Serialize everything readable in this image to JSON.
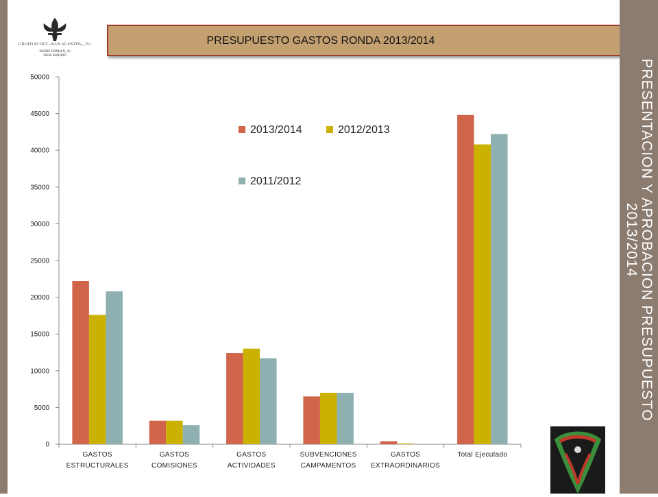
{
  "slide": {
    "banner_title": "PRESUPUESTO GASTOS RONDA 2013/2014",
    "side_title_line1": "PRESENTACION Y APROBACION PRESUPUESTO",
    "side_title_line2": "2013/2014",
    "logo": {
      "name": "GRUPO SCOUT «SAN AGUSTIN», 151",
      "address_line1": "PADRE DAMIAN, 18",
      "address_line2": "28036 MADRID",
      "icon": "fleur-de-lis-icon"
    },
    "colors": {
      "side_panel": "#8c7b6f",
      "banner_fill": "#c4a070",
      "banner_border": "#9a3b2d"
    }
  },
  "chart_data": {
    "type": "bar",
    "title": "",
    "xlabel": "",
    "ylabel": "",
    "categories": [
      [
        "GASTOS",
        "ESTRUCTURALES"
      ],
      [
        "GASTOS",
        "COMISIONES"
      ],
      [
        "GASTOS",
        "ACTIVIDADES"
      ],
      [
        "SUBVENCIONES",
        "CAMPAMENTOS"
      ],
      [
        "GASTOS",
        "EXTRAORDINARIOS"
      ],
      [
        "Total Ejecutado"
      ]
    ],
    "series": [
      {
        "name": "2013/2014",
        "color": "#d0654a",
        "values": [
          22200,
          3200,
          12400,
          6500,
          400,
          44800
        ]
      },
      {
        "name": "2012/2013",
        "color": "#cbb200",
        "values": [
          17600,
          3200,
          13000,
          7000,
          100,
          40800
        ]
      },
      {
        "name": "2011/2012",
        "color": "#8fb0b0",
        "values": [
          20800,
          2600,
          11700,
          7000,
          0,
          42200
        ]
      }
    ],
    "ylim": [
      0,
      50000
    ],
    "yticks": [
      "0",
      "5000",
      "10000",
      "15000",
      "20000",
      "25000",
      "30000",
      "35000",
      "40000",
      "45000",
      "50000"
    ],
    "grid": false,
    "legend_position": "top-center"
  }
}
